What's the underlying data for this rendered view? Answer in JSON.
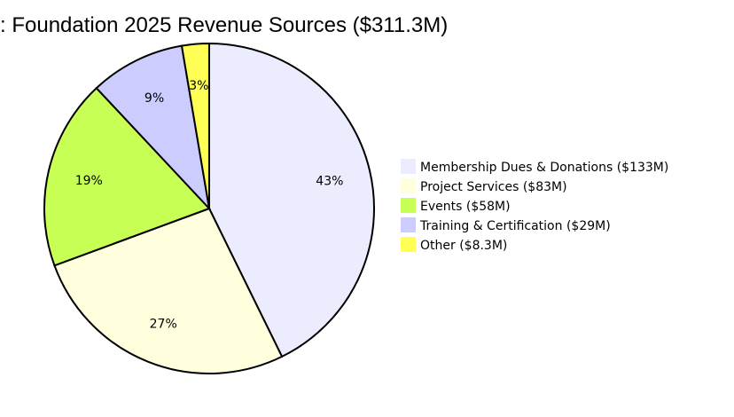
{
  "chart_data": {
    "type": "pie",
    "title": ": Foundation 2025 Revenue Sources ($311.3M)",
    "categories": [
      "Membership Dues & Donations ($133M)",
      "Project Services ($83M)",
      "Events ($58M)",
      "Training & Certification ($29M)",
      "Other ($8.3M)"
    ],
    "values": [
      133,
      83,
      58,
      29,
      8.3
    ],
    "percent_labels": [
      "43%",
      "27%",
      "19%",
      "9%",
      "3%"
    ],
    "colors": [
      "#ececff",
      "#ffffde",
      "#c8ff55",
      "#ccccff",
      "#ffff55"
    ],
    "legend_position": "right",
    "start_angle": "top",
    "direction": "clockwise"
  }
}
